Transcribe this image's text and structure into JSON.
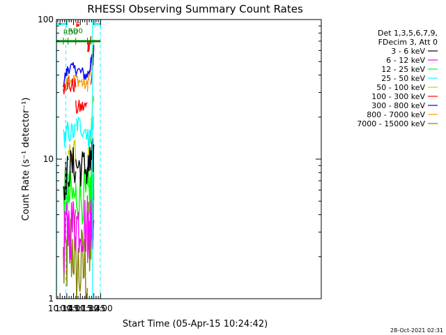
{
  "chart_data": {
    "type": "line",
    "title": "RHESSI Observing Summary Count Rates",
    "xlabel": "Start Time (05-Apr-15 10:24:42)",
    "ylabel": "Count Rate (s⁻¹ detector⁻¹)",
    "timestamp": "28-Oct-2021 02:31",
    "x_unit": "minutes of day",
    "xlim": [
      622,
      1210
    ],
    "ylim": [
      1,
      100
    ],
    "y_scale": "log",
    "x_ticks": [
      {
        "v": 630,
        "label": "10:30"
      },
      {
        "v": 645,
        "label": "10:45"
      },
      {
        "v": 660,
        "label": "11:00"
      },
      {
        "v": 675,
        "label": "11:15"
      },
      {
        "v": 690,
        "label": "11:30"
      },
      {
        "v": 705,
        "label": "11:45"
      },
      {
        "v": 720,
        "label": "12:00"
      }
    ],
    "y_ticks": [
      {
        "v": 1,
        "label": "1"
      },
      {
        "v": 10,
        "label": "10"
      },
      {
        "v": 100,
        "label": "100"
      }
    ],
    "legend": {
      "placement": "top-right",
      "header": [
        "Det 1,3,5,6,7,9,",
        "FDecim 3, Att 0"
      ]
    },
    "annotations": [
      {
        "text": "N",
        "x": 642.2,
        "y": 97,
        "color": "#00ffff"
      },
      {
        "text": "RD0",
        "x": 637.0,
        "y": 78,
        "color": "#008000"
      },
      {
        "text": "RD0",
        "x": 648.0,
        "y": 80,
        "color": "#008000"
      },
      {
        "text": "F",
        "x": 665.0,
        "y": 88,
        "color": "#ff0000"
      }
    ],
    "markers": {
      "cyan_line": {
        "color": "#00ffff",
        "y": 93,
        "segments": [
          [
            622,
            644.5
          ],
          [
            707.6,
            720
          ]
        ],
        "ticks": [
          622,
          644.5,
          707.6,
          720
        ]
      },
      "green_line": {
        "color": "#008000",
        "y": 70,
        "segments": [
          [
            622,
            720
          ]
        ],
        "ticks": [
          637.4,
          647.8,
          664.8,
          690.9,
          698.4
        ]
      },
      "red_flare_bar": {
        "color": "#ff0000",
        "y": 91,
        "segments": [
          [
            665.9,
            672.8
          ]
        ]
      },
      "solid_verticals": [
        {
          "x": 622.4,
          "color": "#00ffff"
        },
        {
          "x": 701.8,
          "color": "#00ffff"
        }
      ],
      "dashed_verticals": [
        {
          "x": 642.7,
          "color": "#00ffff"
        },
        {
          "x": 719.4,
          "color": "#00ffff"
        }
      ]
    },
    "series": [
      {
        "name": "3 - 6 keV",
        "color": "#000000",
        "lw": 1.4,
        "noise": 0.15,
        "segments": [
          {
            "x": [
              637.4,
              647.8
            ],
            "y": [
              6.5,
              8.0
            ]
          },
          {
            "x": [
              647.8,
              664.8
            ],
            "y": [
              8.5,
              9.0
            ]
          },
          {
            "x": [
              664.8,
              690.9
            ],
            "y": [
              9.0,
              8.5
            ]
          },
          {
            "x": [
              690.9,
              698.4
            ],
            "y": [
              8.5,
              9.0
            ]
          },
          {
            "x": [
              698.4,
              705.0
            ],
            "y": [
              9.0,
              11.0
            ]
          }
        ]
      },
      {
        "name": "6 - 12 keV",
        "color": "#ff00ff",
        "lw": 1.4,
        "noise": 0.25,
        "segments": [
          {
            "x": [
              637.4,
              647.8
            ],
            "y": [
              2.5,
              3.0
            ]
          },
          {
            "x": [
              647.8,
              664.8
            ],
            "y": [
              3.3,
              3.3
            ]
          },
          {
            "x": [
              664.8,
              690.9
            ],
            "y": [
              3.5,
              3.4
            ]
          },
          {
            "x": [
              690.9,
              698.4
            ],
            "y": [
              3.3,
              3.5
            ]
          },
          {
            "x": [
              698.4,
              705.0
            ],
            "y": [
              3.5,
              4.2
            ]
          }
        ]
      },
      {
        "name": "12 - 25 keV",
        "color": "#00ff00",
        "lw": 1.4,
        "noise": 0.2,
        "segments": [
          {
            "x": [
              637.4,
              647.8
            ],
            "y": [
              5.0,
              5.8
            ]
          },
          {
            "x": [
              647.8,
              664.8
            ],
            "y": [
              5.3,
              5.3
            ]
          },
          {
            "x": [
              664.8,
              690.9
            ],
            "y": [
              5.5,
              5.3
            ]
          },
          {
            "x": [
              690.9,
              698.4
            ],
            "y": [
              5.3,
              5.8
            ]
          },
          {
            "x": [
              698.4,
              705.0
            ],
            "y": [
              5.8,
              7.5
            ]
          }
        ]
      },
      {
        "name": "25 - 50 keV",
        "color": "#00ffff",
        "lw": 1.4,
        "noise": 0.08,
        "segments": [
          {
            "x": [
              637.4,
              647.8
            ],
            "y": [
              14.0,
              16.0
            ]
          },
          {
            "x": [
              647.8,
              664.8
            ],
            "y": [
              15.5,
              15.5
            ]
          },
          {
            "x": [
              664.8,
              690.9
            ],
            "y": [
              18.0,
              16.0
            ]
          },
          {
            "x": [
              690.9,
              698.4
            ],
            "y": [
              14.0,
              15.0
            ]
          },
          {
            "x": [
              698.4,
              705.0
            ],
            "y": [
              15.0,
              20.0
            ]
          }
        ]
      },
      {
        "name": "50 - 100 keV",
        "color": "#cccc00",
        "lw": 1.4,
        "noise": 0.08,
        "segments": [
          {
            "x": [
              647.8,
              664.8
            ],
            "y": [
              11.0,
              11.5
            ]
          },
          {
            "x": [
              690.9,
              698.4
            ],
            "y": [
              11.0,
              12.5
            ]
          },
          {
            "x": [
              698.4,
              705.0
            ],
            "y": [
              13.0,
              30.0
            ]
          }
        ]
      },
      {
        "name": "100 - 300 keV",
        "color": "#ff0000",
        "lw": 1.4,
        "noise": 0.06,
        "segments": [
          {
            "x": [
              637.4,
              647.8
            ],
            "y": [
              33.0,
              36.0
            ]
          },
          {
            "x": [
              647.8,
              664.8
            ],
            "y": [
              33.0,
              34.0
            ]
          },
          {
            "x": [
              664.8,
              690.9
            ],
            "y": [
              23.0,
              24.0
            ]
          },
          {
            "x": [
              690.9,
              698.4
            ],
            "y": [
              64.0,
              72.0
            ]
          },
          {
            "x": [
              698.4,
              705.0
            ],
            "y": [
              33.0,
              55.0
            ]
          }
        ]
      },
      {
        "name": "300 - 800 keV",
        "color": "#0000ff",
        "lw": 1.4,
        "noise": 0.05,
        "segments": [
          {
            "x": [
              637.4,
              647.8
            ],
            "y": [
              36.0,
              44.0
            ]
          },
          {
            "x": [
              647.8,
              664.8
            ],
            "y": [
              46.0,
              43.0
            ]
          },
          {
            "x": [
              664.8,
              690.9
            ],
            "y": [
              44.0,
              39.0
            ]
          },
          {
            "x": [
              690.9,
              698.4
            ],
            "y": [
              40.0,
              48.0
            ]
          },
          {
            "x": [
              698.4,
              705.0
            ],
            "y": [
              48.0,
              60.0
            ]
          }
        ]
      },
      {
        "name": "800 - 7000 keV",
        "color": "#ff9900",
        "lw": 1.4,
        "noise": 0.05,
        "segments": [
          {
            "x": [
              637.4,
              647.8
            ],
            "y": [
              31.0,
              36.0
            ]
          },
          {
            "x": [
              647.8,
              664.8
            ],
            "y": [
              39.0,
              37.0
            ]
          },
          {
            "x": [
              664.8,
              690.9
            ],
            "y": [
              38.0,
              33.0
            ]
          },
          {
            "x": [
              690.9,
              698.4
            ],
            "y": [
              34.0,
              44.0
            ]
          },
          {
            "x": [
              698.4,
              705.0
            ],
            "y": [
              44.0,
              65.0
            ]
          }
        ]
      },
      {
        "name": "7000 - 15000 keV",
        "color": "#808000",
        "lw": 1.4,
        "noise": 0.35,
        "segments": [
          {
            "x": [
              637.4,
              647.8
            ],
            "y": [
              1.7,
              2.2
            ]
          },
          {
            "x": [
              647.8,
              664.8
            ],
            "y": [
              2.3,
              2.4
            ]
          },
          {
            "x": [
              664.8,
              690.9
            ],
            "y": [
              1.6,
              1.6
            ]
          },
          {
            "x": [
              690.9,
              698.4
            ],
            "y": [
              2.2,
              2.6
            ]
          },
          {
            "x": [
              698.4,
              705.0
            ],
            "y": [
              2.6,
              6.0
            ]
          }
        ]
      }
    ]
  }
}
